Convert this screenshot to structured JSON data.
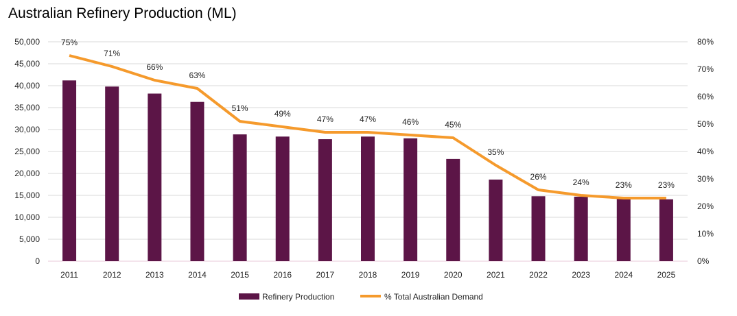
{
  "chart_data": {
    "type": "bar+line",
    "title": "Australian Refinery Production (ML)",
    "categories": [
      "2011",
      "2012",
      "2013",
      "2014",
      "2015",
      "2016",
      "2017",
      "2018",
      "2019",
      "2020",
      "2021",
      "2022",
      "2023",
      "2024",
      "2025"
    ],
    "series": [
      {
        "name": "Refinery Production",
        "type": "bar",
        "axis": "left",
        "color": "#5C1547",
        "values": [
          41200,
          39800,
          38200,
          36300,
          28900,
          28400,
          27800,
          28400,
          28000,
          23300,
          18600,
          14800,
          14700,
          14400,
          14100
        ]
      },
      {
        "name": "% Total Australian Demand",
        "type": "line",
        "axis": "right",
        "color": "#F59A2C",
        "values": [
          75,
          71,
          66,
          63,
          51,
          49,
          47,
          47,
          46,
          45,
          35,
          26,
          24,
          23,
          23
        ],
        "labels": [
          "75%",
          "71%",
          "66%",
          "63%",
          "51%",
          "49%",
          "47%",
          "47%",
          "46%",
          "45%",
          "35%",
          "26%",
          "24%",
          "23%",
          "23%"
        ]
      }
    ],
    "ylim_left": [
      0,
      50000
    ],
    "yticks_left": [
      "0",
      "5,000",
      "10,000",
      "15,000",
      "20,000",
      "25,000",
      "30,000",
      "35,000",
      "40,000",
      "45,000",
      "50,000"
    ],
    "ylim_right": [
      0,
      80
    ],
    "yticks_right": [
      "0%",
      "10%",
      "20%",
      "30%",
      "40%",
      "50%",
      "60%",
      "70%",
      "80%"
    ],
    "grid": true,
    "legend": "bottom"
  }
}
